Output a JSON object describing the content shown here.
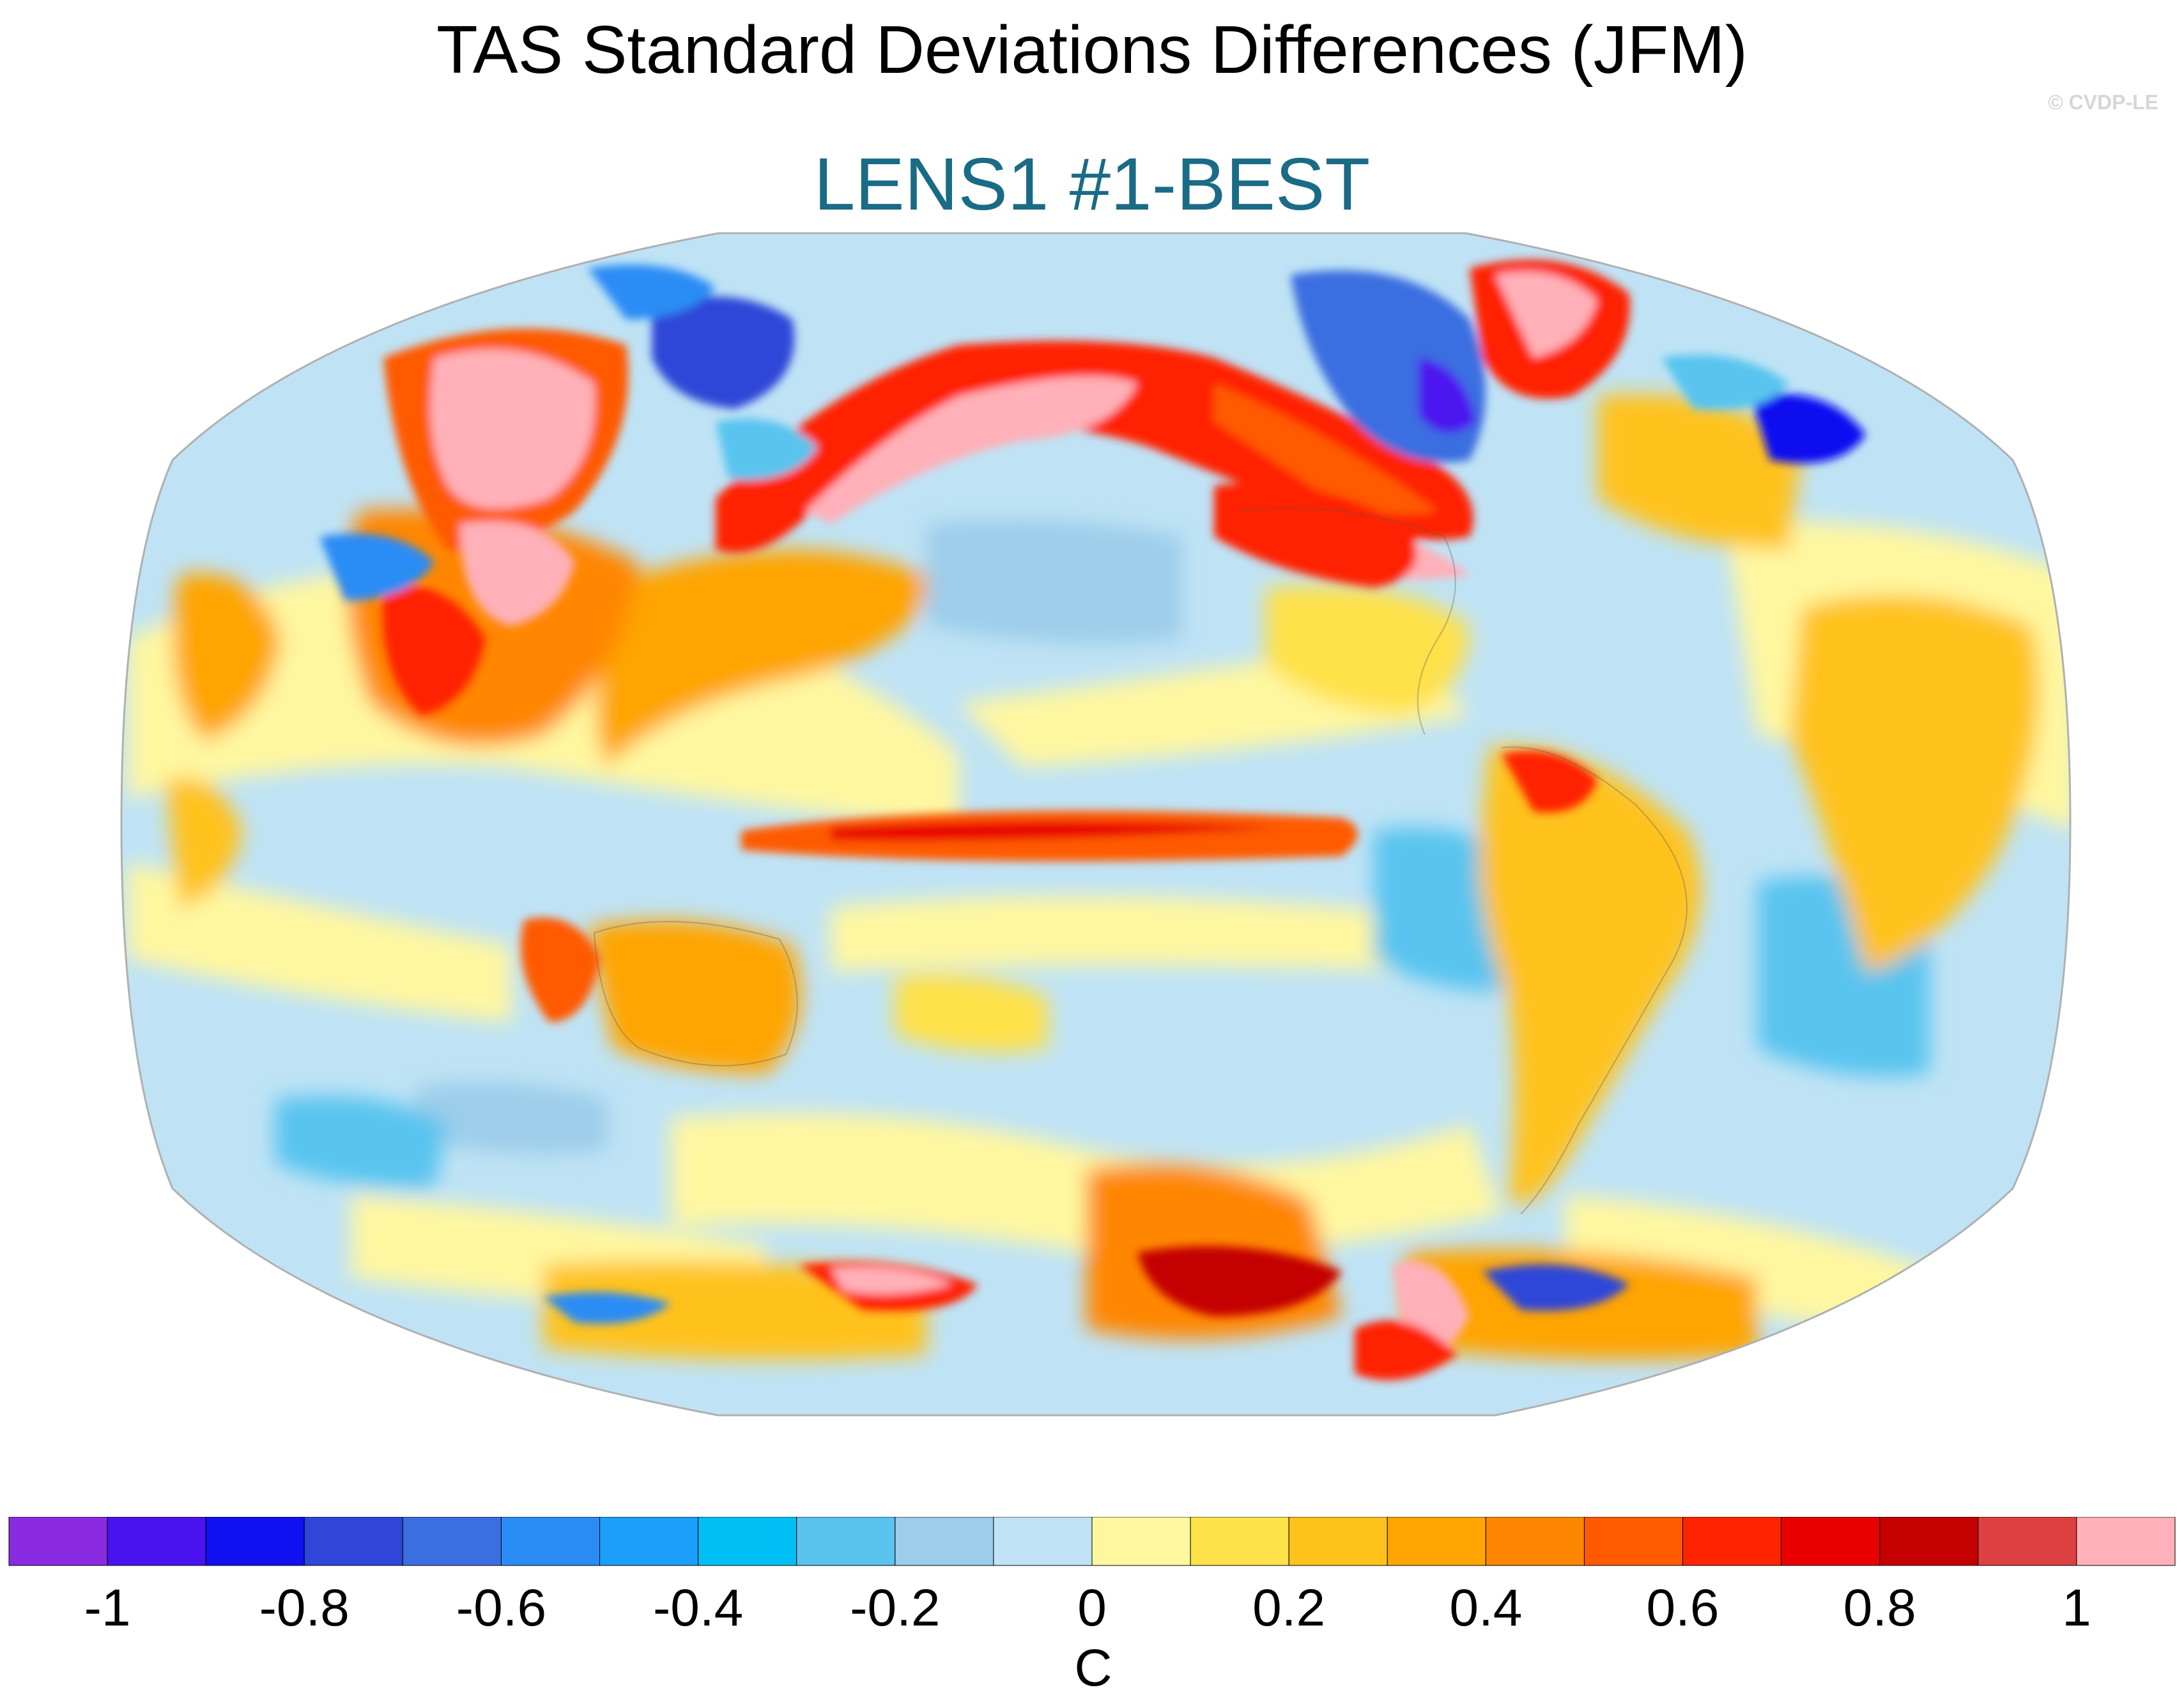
{
  "title": "TAS Standard Deviations Differences (JFM)",
  "subtitle": "LENS1 #1-BEST",
  "credit": "© CVDP-LE",
  "colors": {
    "subtitle": "#1a6b86",
    "colorbar": [
      "#8a2be2",
      "#4b12f0",
      "#1010f0",
      "#2f46d8",
      "#3b6ee0",
      "#2a8cf5",
      "#1aa0fa",
      "#00bff5",
      "#58c4ef",
      "#9ccdea",
      "#bfe3f5",
      "#fff7a0",
      "#ffe14a",
      "#ffc21a",
      "#ffa400",
      "#ff8600",
      "#ff5a00",
      "#ff2400",
      "#e80000",
      "#c40000",
      "#dd4040",
      "#ffb0b8"
    ]
  },
  "colorbar": {
    "labels": [
      "-1",
      "-0.8",
      "-0.6",
      "-0.4",
      "-0.2",
      "0",
      "0.2",
      "0.4",
      "0.6",
      "0.8",
      "1"
    ],
    "units": "C"
  },
  "map": {
    "projection": "Robinson",
    "center": "Pacific",
    "field": "TAS standard deviation differences"
  }
}
